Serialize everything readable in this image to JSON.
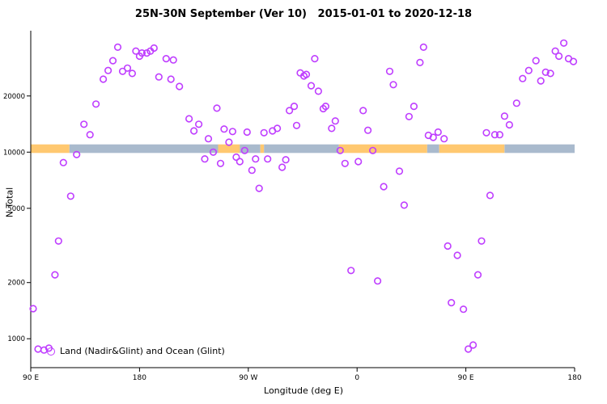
{
  "chart_data": {
    "type": "scatter",
    "title": "25N-30N September (Ver 10)   2015-01-01 to 2020-12-18",
    "xlabel": "Longitude (deg E)",
    "ylabel": "N Total",
    "x_axis": {
      "min": 90,
      "max": 540,
      "wrap_note": "longitude increases eastward from 90E, wrapping through 180, 90W, 0, 90E back to 180",
      "ticks": [
        {
          "pos": 90,
          "label": "90 E"
        },
        {
          "pos": 180,
          "label": "180"
        },
        {
          "pos": 270,
          "label": "90 W"
        },
        {
          "pos": 360,
          "label": "0"
        },
        {
          "pos": 450,
          "label": "90 E"
        },
        {
          "pos": 540,
          "label": "180"
        }
      ]
    },
    "y_axis": {
      "scale": "log",
      "min": 700,
      "max": 43000,
      "ticks": [
        1000,
        2000,
        5000,
        10000,
        20000
      ]
    },
    "legend": {
      "label": "Land (Nadir&Glint) and Ocean (Glint)",
      "marker_color": "#BF3EFF"
    },
    "surface_band": {
      "description": "land/ocean surface-type strip for the 25N-30N latitude band",
      "y_low": 9900,
      "y_high": 11000,
      "land_color": "#FFC870",
      "ocean_color": "#A9BACD",
      "segments": [
        {
          "from": 90,
          "to": 122,
          "surface": "land"
        },
        {
          "from": 122,
          "to": 245,
          "surface": "ocean"
        },
        {
          "from": 245,
          "to": 263,
          "surface": "land"
        },
        {
          "from": 263,
          "to": 280,
          "surface": "ocean"
        },
        {
          "from": 280,
          "to": 283,
          "surface": "land"
        },
        {
          "from": 283,
          "to": 345,
          "surface": "ocean"
        },
        {
          "from": 345,
          "to": 418,
          "surface": "land"
        },
        {
          "from": 418,
          "to": 428,
          "surface": "ocean"
        },
        {
          "from": 428,
          "to": 482,
          "surface": "land"
        },
        {
          "from": 482,
          "to": 540,
          "surface": "ocean"
        }
      ]
    },
    "series": [
      {
        "name": "N Total",
        "marker": "open-circle",
        "color": "#BF3EFF",
        "points": [
          [
            92,
            1450
          ],
          [
            96,
            880
          ],
          [
            101,
            870
          ],
          [
            105,
            890
          ],
          [
            110,
            2200
          ],
          [
            113,
            3340
          ],
          [
            117,
            8790
          ],
          [
            123,
            5810
          ],
          [
            128,
            9700
          ],
          [
            134,
            14100
          ],
          [
            139,
            12400
          ],
          [
            144,
            18100
          ],
          [
            150,
            24600
          ],
          [
            154,
            27400
          ],
          [
            158,
            30900
          ],
          [
            162,
            36500
          ],
          [
            166,
            27100
          ],
          [
            170,
            28200
          ],
          [
            174,
            26400
          ],
          [
            177,
            34800
          ],
          [
            180,
            32700
          ],
          [
            182,
            34000
          ],
          [
            186,
            34000
          ],
          [
            189,
            34800
          ],
          [
            192,
            36100
          ],
          [
            196,
            25300
          ],
          [
            202,
            31700
          ],
          [
            206,
            24600
          ],
          [
            208,
            31200
          ],
          [
            213,
            22500
          ],
          [
            221,
            15100
          ],
          [
            225,
            13000
          ],
          [
            229,
            14100
          ],
          [
            234,
            9200
          ],
          [
            237,
            11800
          ],
          [
            241,
            10000
          ],
          [
            244,
            17200
          ],
          [
            247,
            8700
          ],
          [
            250,
            13300
          ],
          [
            254,
            11300
          ],
          [
            257,
            12900
          ],
          [
            260,
            9400
          ],
          [
            263,
            8900
          ],
          [
            267,
            10200
          ],
          [
            269,
            12800
          ],
          [
            273,
            8000
          ],
          [
            276,
            9200
          ],
          [
            279,
            6400
          ],
          [
            283,
            12700
          ],
          [
            286,
            9200
          ],
          [
            290,
            13000
          ],
          [
            294,
            13400
          ],
          [
            298,
            8300
          ],
          [
            301,
            9100
          ],
          [
            304,
            16700
          ],
          [
            308,
            17600
          ],
          [
            310,
            13900
          ],
          [
            313,
            26600
          ],
          [
            316,
            25600
          ],
          [
            318,
            26100
          ],
          [
            322,
            22700
          ],
          [
            325,
            31700
          ],
          [
            328,
            21200
          ],
          [
            332,
            17100
          ],
          [
            334,
            17600
          ],
          [
            339,
            13400
          ],
          [
            342,
            14700
          ],
          [
            346,
            10200
          ],
          [
            350,
            8700
          ],
          [
            355,
            2320
          ],
          [
            361,
            8900
          ],
          [
            365,
            16700
          ],
          [
            369,
            13100
          ],
          [
            373,
            10200
          ],
          [
            377,
            2040
          ],
          [
            382,
            6530
          ],
          [
            387,
            27100
          ],
          [
            390,
            23000
          ],
          [
            395,
            7900
          ],
          [
            399,
            5200
          ],
          [
            403,
            15500
          ],
          [
            407,
            17600
          ],
          [
            412,
            30200
          ],
          [
            415,
            36500
          ],
          [
            419,
            12300
          ],
          [
            423,
            12000
          ],
          [
            427,
            12800
          ],
          [
            432,
            11800
          ],
          [
            435,
            3140
          ],
          [
            438,
            1560
          ],
          [
            443,
            2800
          ],
          [
            448,
            1440
          ],
          [
            452,
            880
          ],
          [
            456,
            925
          ],
          [
            460,
            2200
          ],
          [
            463,
            3340
          ],
          [
            467,
            12700
          ],
          [
            470,
            5860
          ],
          [
            474,
            12400
          ],
          [
            478,
            12400
          ],
          [
            482,
            15600
          ],
          [
            486,
            14000
          ],
          [
            492,
            18300
          ],
          [
            497,
            24800
          ],
          [
            502,
            27400
          ],
          [
            508,
            30900
          ],
          [
            512,
            24100
          ],
          [
            516,
            26800
          ],
          [
            520,
            26400
          ],
          [
            524,
            34800
          ],
          [
            527,
            32700
          ],
          [
            531,
            38400
          ],
          [
            535,
            31700
          ],
          [
            539,
            30600
          ]
        ]
      }
    ]
  }
}
